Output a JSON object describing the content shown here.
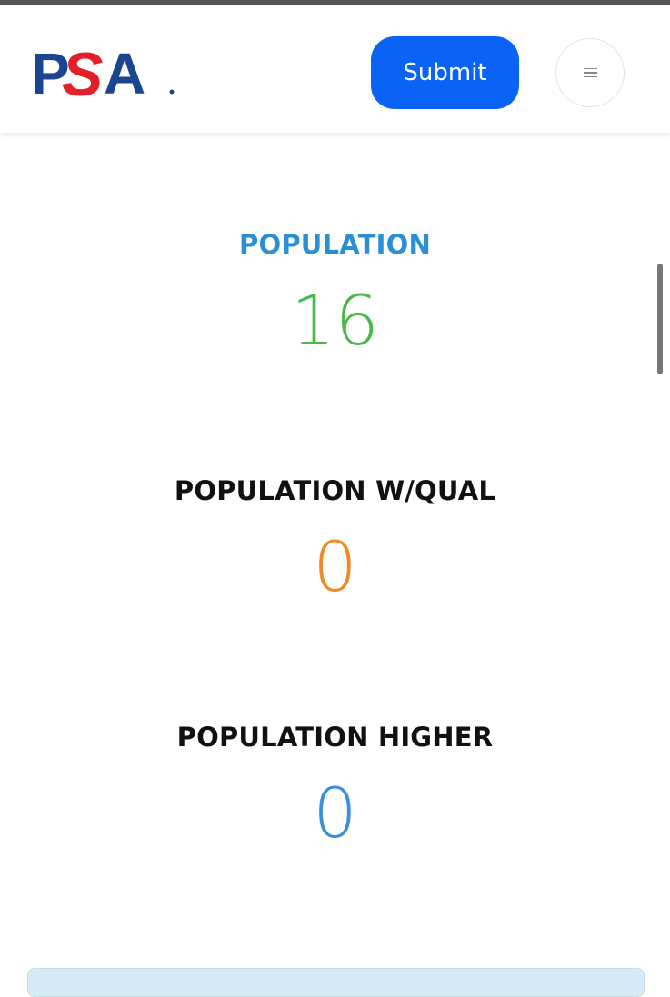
{
  "header": {
    "logo_text": "PSA",
    "submit_label": "Submit",
    "menu_icon": "hamburger-icon"
  },
  "stats": [
    {
      "label": "POPULATION",
      "value": "16",
      "label_color": "#2b8fd6",
      "value_color": "#4cb84c"
    },
    {
      "label": "POPULATION W/QUAL",
      "value": "0",
      "label_color": "#111111",
      "value_color": "#f08a24"
    },
    {
      "label": "POPULATION HIGHER",
      "value": "0",
      "label_color": "#111111",
      "value_color": "#3a8fd8"
    }
  ],
  "colors": {
    "brand_blue": "#0b63f6",
    "logo_navy": "#1c4591",
    "logo_red": "#e3202a"
  }
}
